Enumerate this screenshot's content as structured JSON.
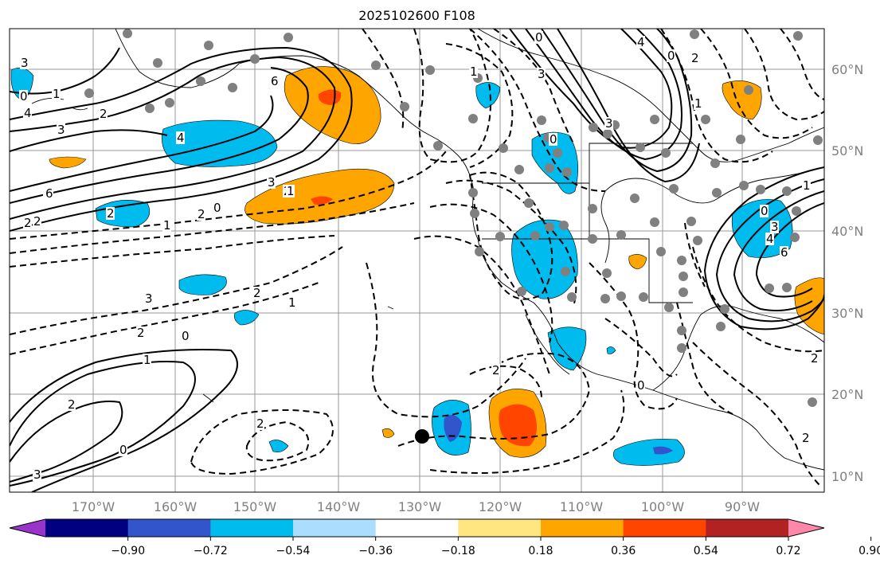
{
  "title": "2025102600 F108",
  "lon_ticks": [
    "170°W",
    "160°W",
    "150°W",
    "140°W",
    "130°W",
    "120°W",
    "110°W",
    "100°W",
    "90°W"
  ],
  "lat_ticks": [
    "60°N",
    "50°N",
    "40°N",
    "30°N",
    "20°N",
    "10°N"
  ],
  "colorbar": {
    "labels": [
      "−0.90",
      "−0.72",
      "−0.54",
      "−0.36",
      "−0.18",
      "0.18",
      "0.36",
      "0.54",
      "0.72",
      "0.90"
    ],
    "colors": [
      "#9933cc",
      "#000080",
      "#3355cc",
      "#00bbee",
      "#aaddff",
      "#ffffff",
      "#ffe680",
      "#ffa500",
      "#ff4500",
      "#b22222",
      "#ff88aa"
    ]
  },
  "contour_labels": [
    "6",
    "4",
    "3",
    "2",
    "1",
    "0",
    "1",
    "2",
    "3",
    "0",
    "2",
    "1",
    "2",
    "2",
    "6",
    "3",
    "1",
    "0",
    "2",
    "2",
    "3",
    "2",
    "1",
    "0",
    "2",
    "2",
    "0",
    "2",
    "1",
    "4",
    "3",
    "0",
    "2",
    "3",
    "4",
    "6",
    "0",
    "1",
    "1",
    "0",
    "2",
    "3",
    "4",
    "0",
    "3",
    "2",
    "1"
  ],
  "marker": "storm-center"
}
